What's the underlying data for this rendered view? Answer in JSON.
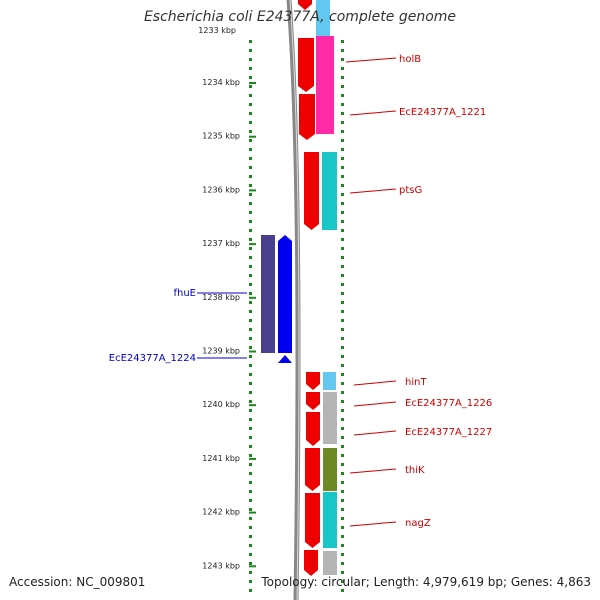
{
  "title": "Escherichia coli E24377A, complete genome",
  "footer": {
    "accession": "Accession: NC_009801",
    "summary": "Topology: circular; Length: 4,979,619 bp; Genes: 4,863"
  },
  "scale": {
    "top_label": "1233 kbp",
    "ticks": [
      "1234 kbp",
      "1235 kbp",
      "1236 kbp",
      "1237 kbp",
      "1238 kbp",
      "1239 kbp",
      "1240 kbp",
      "1241 kbp",
      "1242 kbp",
      "1243 kbp"
    ]
  },
  "genes_right": [
    {
      "label": "holB"
    },
    {
      "label": "EcE24377A_1221"
    },
    {
      "label": "ptsG"
    },
    {
      "label": "hinT"
    },
    {
      "label": "EcE24377A_1226"
    },
    {
      "label": "EcE24377A_1227"
    },
    {
      "label": "thiK"
    },
    {
      "label": "nagZ"
    }
  ],
  "genes_left": [
    {
      "label": "fhuE"
    },
    {
      "label": "EcE24377A_1224"
    }
  ],
  "colors": {
    "forward_cds": "#ee0000",
    "reverse_cds": "#0000ee",
    "reverse_block": "#4a3f8f",
    "label_right": "#cc0000",
    "label_left": "#0000cc",
    "backbone": "#888888",
    "tick_dots": "#1a8a1a",
    "magenta": "#ff2aa6",
    "cyan": "#18c6c8",
    "light_blue": "#62c8ef",
    "grey": "#b4b4b4",
    "olive": "#6b8a23"
  }
}
